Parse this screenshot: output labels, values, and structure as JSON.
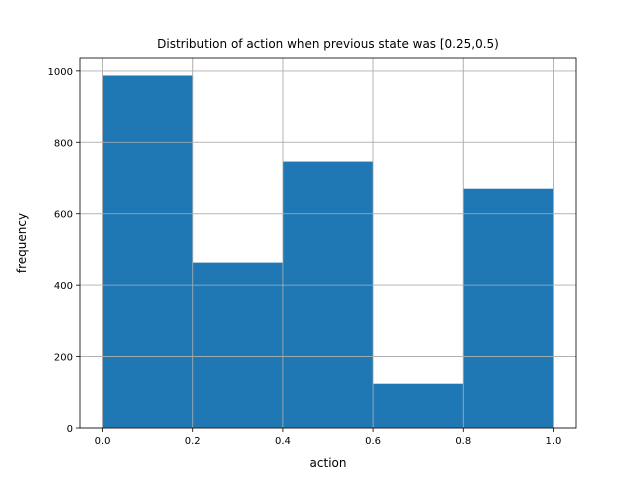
{
  "chart_data": {
    "type": "bar",
    "title": "Distribution of action when previous state was [0.25,0.5)",
    "xlabel": "action",
    "ylabel": "frequency",
    "bins": [
      {
        "x0": 0.0,
        "x1": 0.2,
        "value": 987
      },
      {
        "x0": 0.2,
        "x1": 0.4,
        "value": 463
      },
      {
        "x0": 0.4,
        "x1": 0.6,
        "value": 746
      },
      {
        "x0": 0.6,
        "x1": 0.8,
        "value": 124
      },
      {
        "x0": 0.8,
        "x1": 1.0,
        "value": 670
      }
    ],
    "xlim": [
      -0.05,
      1.05
    ],
    "ylim": [
      0,
      1036
    ],
    "xticks": [
      0.0,
      0.2,
      0.4,
      0.6,
      0.8,
      1.0
    ],
    "xtick_labels": [
      "0.0",
      "0.2",
      "0.4",
      "0.6",
      "0.8",
      "1.0"
    ],
    "yticks": [
      0,
      200,
      400,
      600,
      800,
      1000
    ],
    "ytick_labels": [
      "0",
      "200",
      "400",
      "600",
      "800",
      "1000"
    ],
    "grid": true,
    "colors": {
      "bar": "#1f77b4",
      "grid": "#b0b0b0",
      "axis": "#000000"
    }
  }
}
